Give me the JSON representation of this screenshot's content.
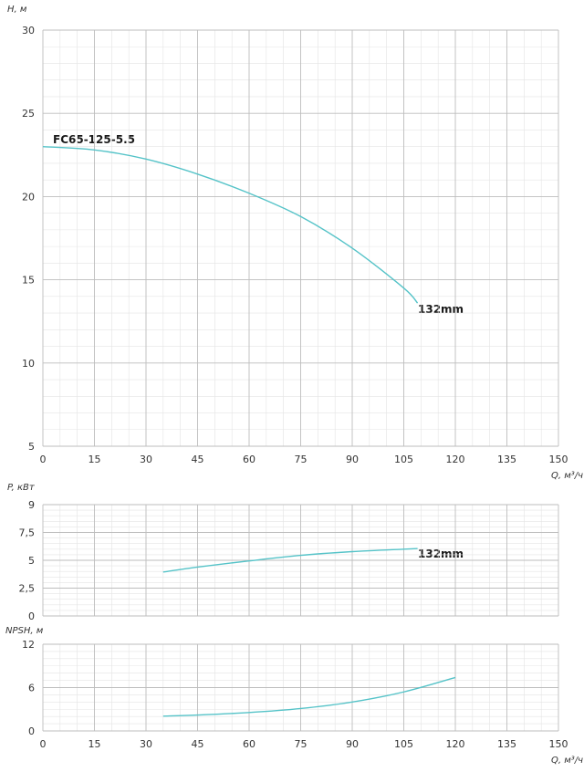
{
  "colors": {
    "curve": "#55c3c8",
    "major_grid": "#bdbdbd",
    "minor_grid": "#e4e4e4",
    "frame": "#bdbdbd",
    "text": "#333333"
  },
  "chart_data": [
    {
      "id": "head",
      "type": "line",
      "title": "",
      "ylabel": "H, м",
      "xlabel": "Q, м³/ч",
      "xlim": [
        0,
        150
      ],
      "ylim": [
        5,
        30
      ],
      "x_ticks": [
        "0",
        "15",
        "30",
        "45",
        "60",
        "75",
        "90",
        "105",
        "120",
        "135",
        "150"
      ],
      "y_ticks": [
        "30",
        "25",
        "20",
        "15",
        "10",
        "5"
      ],
      "grid": true,
      "model_label": "FC65-125-5.5",
      "series": [
        {
          "name": "132mm",
          "x": [
            0,
            15,
            30,
            45,
            60,
            75,
            90,
            105,
            109
          ],
          "y": [
            23.0,
            22.8,
            22.25,
            21.35,
            20.2,
            18.8,
            16.9,
            14.5,
            13.6
          ]
        }
      ]
    },
    {
      "id": "power",
      "type": "line",
      "title": "",
      "ylabel": "P, кВт",
      "xlabel": "",
      "xlim": [
        0,
        150
      ],
      "ylim": [
        0,
        9
      ],
      "y_ticks": [
        "9",
        "7,5",
        "5",
        "2,5",
        "0"
      ],
      "grid": true,
      "series": [
        {
          "name": "132mm",
          "x": [
            35,
            45,
            60,
            75,
            90,
            105,
            109
          ],
          "y": [
            3.55,
            3.95,
            4.45,
            4.9,
            5.2,
            5.4,
            5.45
          ]
        }
      ]
    },
    {
      "id": "npsh",
      "type": "line",
      "title": "",
      "ylabel": "NPSH, м",
      "xlabel": "Q, м³/ч",
      "xlim": [
        0,
        150
      ],
      "ylim": [
        0,
        12
      ],
      "x_ticks": [
        "0",
        "15",
        "30",
        "45",
        "60",
        "75",
        "90",
        "105",
        "120",
        "135",
        "150"
      ],
      "y_ticks": [
        "12",
        "6",
        "0"
      ],
      "grid": true,
      "series": [
        {
          "name": "",
          "x": [
            35,
            45,
            60,
            75,
            90,
            105,
            120
          ],
          "y": [
            2.05,
            2.2,
            2.55,
            3.1,
            4.0,
            5.4,
            7.4
          ]
        }
      ]
    }
  ]
}
